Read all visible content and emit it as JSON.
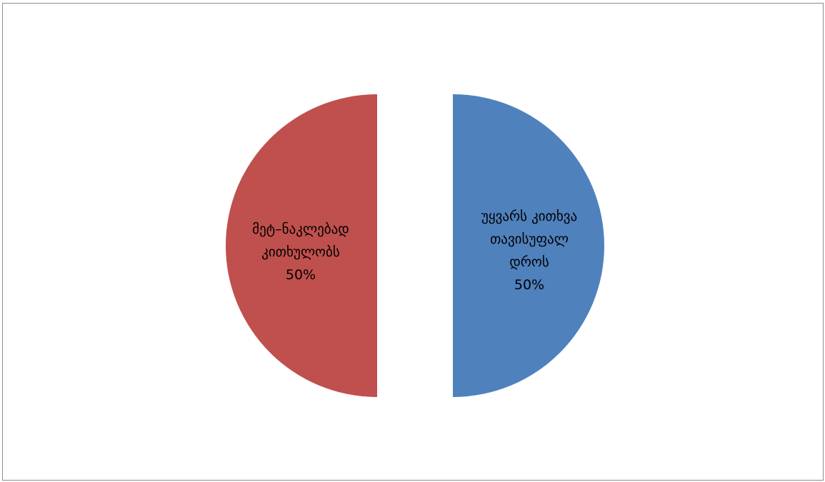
{
  "chart_data": {
    "type": "pie",
    "title": "",
    "exploded": true,
    "slices": [
      {
        "label_lines": [
          "უყვარს კითხვა",
          "თავისუფალ",
          "დროს"
        ],
        "percent_label": "50%",
        "value": 50,
        "color": "#4f81bd"
      },
      {
        "label_lines": [
          "მეტ–ნაკლებად",
          "კითხულობს"
        ],
        "percent_label": "50%",
        "value": 50,
        "color": "#c0504d"
      }
    ]
  }
}
